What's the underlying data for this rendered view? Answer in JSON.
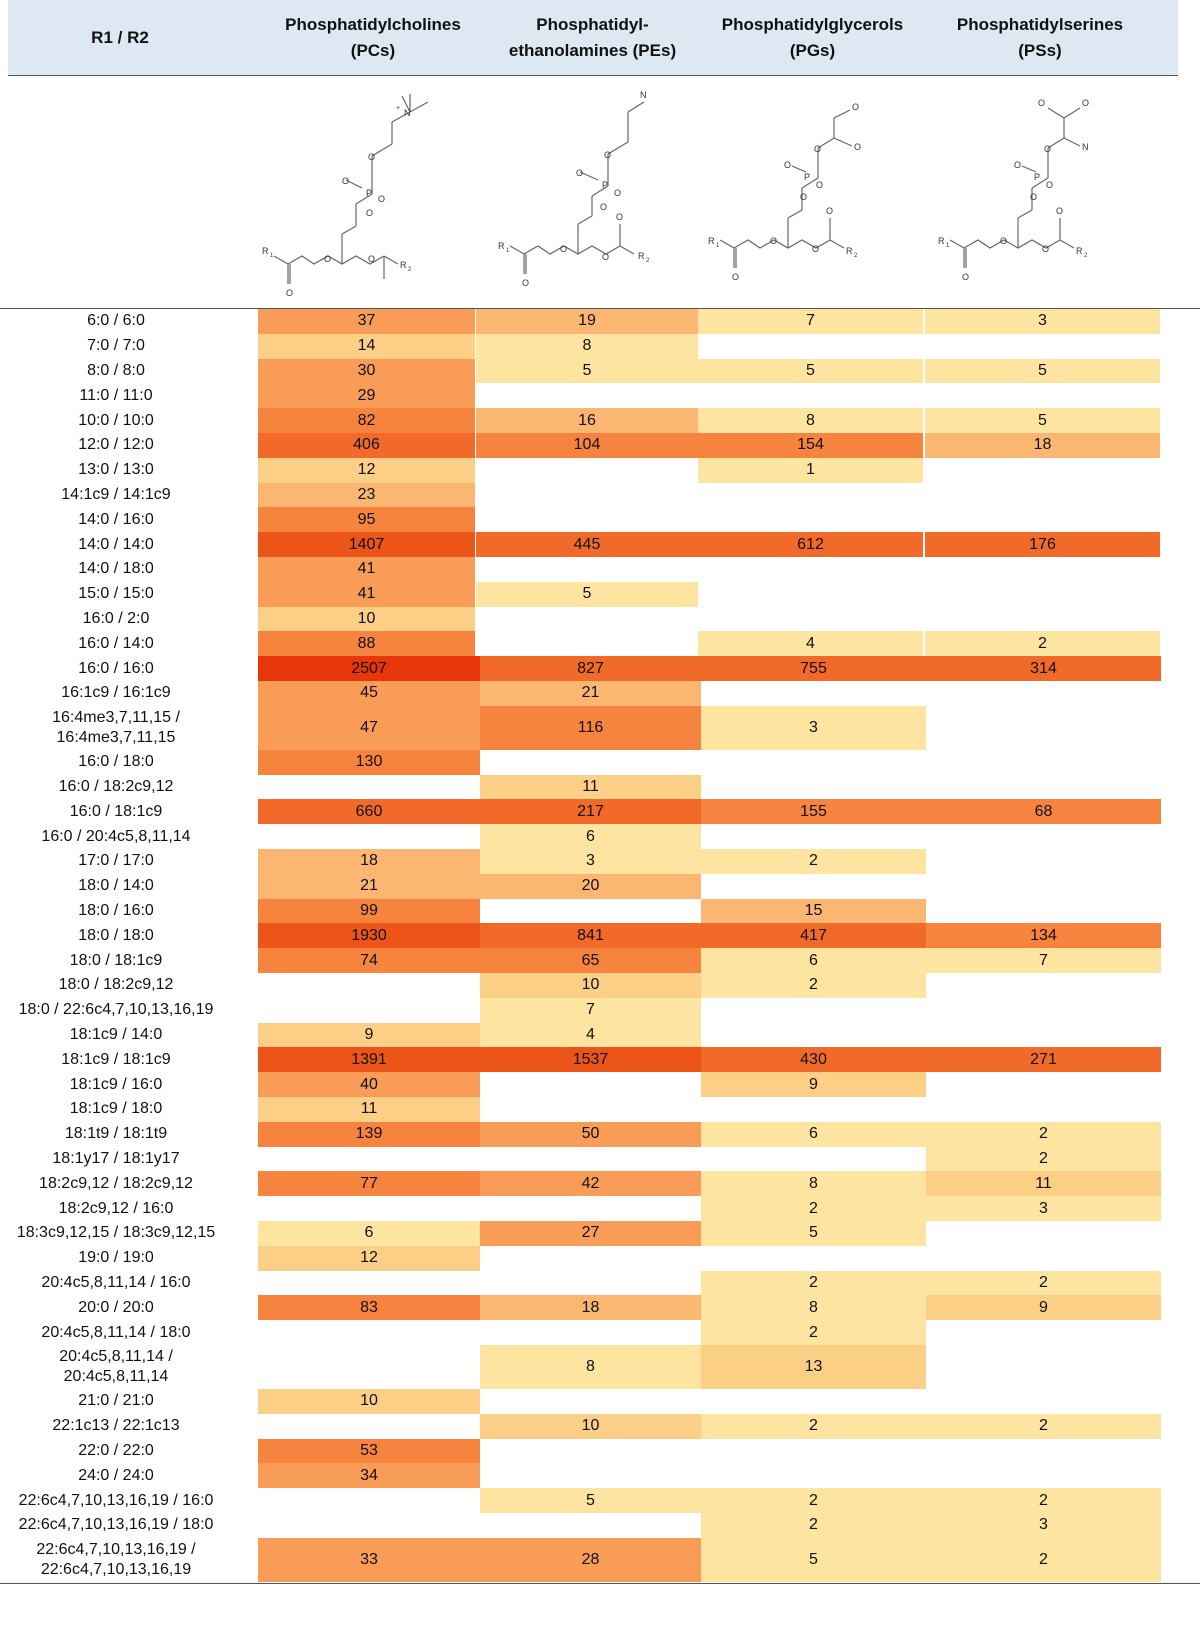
{
  "colors": {
    "header_bg": "#dde8f2",
    "scale": [
      "#fde4a0",
      "#fccf87",
      "#fbb672",
      "#f99c58",
      "#f7843e",
      "#f26a2a",
      "#e8350a"
    ]
  },
  "header": {
    "row_label": "R1 / R2",
    "columns": [
      {
        "line1": "Phosphatidylcholines",
        "line2": "(PCs)"
      },
      {
        "line1": "Phosphatidyl-",
        "line2": "ethanolamines (PEs)"
      },
      {
        "line1": "Phosphatidylglycerols",
        "line2": "(PGs)"
      },
      {
        "line1": "Phosphatidylserines",
        "line2": "(PSs)"
      }
    ]
  },
  "structure_icons": [
    "pc-structure-icon",
    "pe-structure-icon",
    "pg-structure-icon",
    "ps-structure-icon"
  ],
  "rows": [
    {
      "label": [
        "6:0 / 6:0"
      ],
      "values": [
        37,
        19,
        7,
        3
      ]
    },
    {
      "label": [
        "7:0 / 7:0"
      ],
      "values": [
        14,
        8,
        null,
        null
      ]
    },
    {
      "label": [
        "8:0 / 8:0"
      ],
      "values": [
        30,
        5,
        5,
        5
      ]
    },
    {
      "label": [
        "11:0 / 11:0"
      ],
      "values": [
        29,
        null,
        null,
        null
      ]
    },
    {
      "label": [
        "10:0 / 10:0"
      ],
      "values": [
        82,
        16,
        8,
        5
      ]
    },
    {
      "label": [
        "12:0 / 12:0"
      ],
      "values": [
        406,
        104,
        154,
        18
      ]
    },
    {
      "label": [
        "13:0 / 13:0"
      ],
      "values": [
        12,
        null,
        1,
        null
      ]
    },
    {
      "label": [
        "14:1c9 / 14:1c9"
      ],
      "values": [
        23,
        null,
        null,
        null
      ]
    },
    {
      "label": [
        "14:0 / 16:0"
      ],
      "values": [
        95,
        null,
        null,
        null
      ]
    },
    {
      "label": [
        "14:0 / 14:0"
      ],
      "values": [
        1407,
        445,
        612,
        176
      ]
    },
    {
      "label": [
        "14:0 / 18:0"
      ],
      "values": [
        41,
        null,
        null,
        null
      ]
    },
    {
      "label": [
        "15:0 / 15:0"
      ],
      "values": [
        41,
        5,
        null,
        null
      ]
    },
    {
      "label": [
        "16:0 / 2:0"
      ],
      "values": [
        10,
        null,
        null,
        null
      ]
    },
    {
      "label": [
        "16:0 / 14:0"
      ],
      "values": [
        88,
        null,
        4,
        2
      ]
    },
    {
      "label": [
        "16:0 / 16:0"
      ],
      "values": [
        2507,
        827,
        755,
        314
      ]
    },
    {
      "label": [
        "16:1c9 / 16:1c9"
      ],
      "values": [
        45,
        21,
        null,
        null
      ]
    },
    {
      "label": [
        "16:4me3,7,11,15 /",
        "16:4me3,7,11,15"
      ],
      "values": [
        47,
        116,
        3,
        null
      ]
    },
    {
      "label": [
        "16:0 / 18:0"
      ],
      "values": [
        130,
        null,
        null,
        null
      ]
    },
    {
      "label": [
        "16:0 / 18:2c9,12"
      ],
      "values": [
        null,
        11,
        null,
        null
      ]
    },
    {
      "label": [
        "16:0 / 18:1c9"
      ],
      "values": [
        660,
        217,
        155,
        68
      ]
    },
    {
      "label": [
        "16:0 / 20:4c5,8,11,14"
      ],
      "values": [
        null,
        6,
        null,
        null
      ]
    },
    {
      "label": [
        "17:0 / 17:0"
      ],
      "values": [
        18,
        3,
        2,
        null
      ]
    },
    {
      "label": [
        "18:0 / 14:0"
      ],
      "values": [
        21,
        20,
        null,
        null
      ]
    },
    {
      "label": [
        "18:0 / 16:0"
      ],
      "values": [
        99,
        null,
        15,
        null
      ]
    },
    {
      "label": [
        "18:0 / 18:0"
      ],
      "values": [
        1930,
        841,
        417,
        134
      ]
    },
    {
      "label": [
        "18:0 / 18:1c9"
      ],
      "values": [
        74,
        65,
        6,
        7
      ]
    },
    {
      "label": [
        "18:0 / 18:2c9,12"
      ],
      "values": [
        null,
        10,
        2,
        null
      ]
    },
    {
      "label": [
        "18:0 / 22:6c4,7,10,13,16,19"
      ],
      "values": [
        null,
        7,
        null,
        null
      ]
    },
    {
      "label": [
        "18:1c9 / 14:0"
      ],
      "values": [
        9,
        4,
        null,
        null
      ]
    },
    {
      "label": [
        "18:1c9 / 18:1c9"
      ],
      "values": [
        1391,
        1537,
        430,
        271
      ]
    },
    {
      "label": [
        "18:1c9 / 16:0"
      ],
      "values": [
        40,
        null,
        9,
        null
      ]
    },
    {
      "label": [
        "18:1c9 / 18:0"
      ],
      "values": [
        11,
        null,
        null,
        null
      ]
    },
    {
      "label": [
        "18:1t9 / 18:1t9"
      ],
      "values": [
        139,
        50,
        6,
        2
      ]
    },
    {
      "label": [
        "18:1y17 / 18:1y17"
      ],
      "values": [
        null,
        null,
        null,
        2
      ]
    },
    {
      "label": [
        "18:2c9,12 / 18:2c9,12"
      ],
      "values": [
        77,
        42,
        8,
        11
      ]
    },
    {
      "label": [
        "18:2c9,12 / 16:0"
      ],
      "values": [
        null,
        null,
        2,
        3
      ]
    },
    {
      "label": [
        "18:3c9,12,15 / 18:3c9,12,15"
      ],
      "values": [
        6,
        27,
        5,
        null
      ]
    },
    {
      "label": [
        "19:0 / 19:0"
      ],
      "values": [
        12,
        null,
        null,
        null
      ]
    },
    {
      "label": [
        "20:4c5,8,11,14 / 16:0"
      ],
      "values": [
        null,
        null,
        2,
        2
      ]
    },
    {
      "label": [
        "20:0 / 20:0"
      ],
      "values": [
        83,
        18,
        8,
        9
      ]
    },
    {
      "label": [
        "20:4c5,8,11,14 / 18:0"
      ],
      "values": [
        null,
        null,
        2,
        null
      ]
    },
    {
      "label": [
        "20:4c5,8,11,14 /",
        "20:4c5,8,11,14"
      ],
      "values": [
        null,
        8,
        13,
        null
      ]
    },
    {
      "label": [
        "21:0 / 21:0"
      ],
      "values": [
        10,
        null,
        null,
        null
      ]
    },
    {
      "label": [
        "22:1c13 / 22:1c13"
      ],
      "values": [
        null,
        10,
        2,
        2
      ]
    },
    {
      "label": [
        "22:0 / 22:0"
      ],
      "values": [
        53,
        null,
        null,
        null
      ]
    },
    {
      "label": [
        "24:0 / 24:0"
      ],
      "values": [
        34,
        null,
        null,
        null
      ]
    },
    {
      "label": [
        "22:6c4,7,10,13,16,19 / 16:0"
      ],
      "values": [
        null,
        5,
        2,
        2
      ]
    },
    {
      "label": [
        "22:6c4,7,10,13,16,19 / 18:0"
      ],
      "values": [
        null,
        null,
        2,
        3
      ]
    },
    {
      "label": [
        "22:6c4,7,10,13,16,19 /",
        "22:6c4,7,10,13,16,19"
      ],
      "values": [
        33,
        28,
        5,
        2
      ]
    }
  ]
}
